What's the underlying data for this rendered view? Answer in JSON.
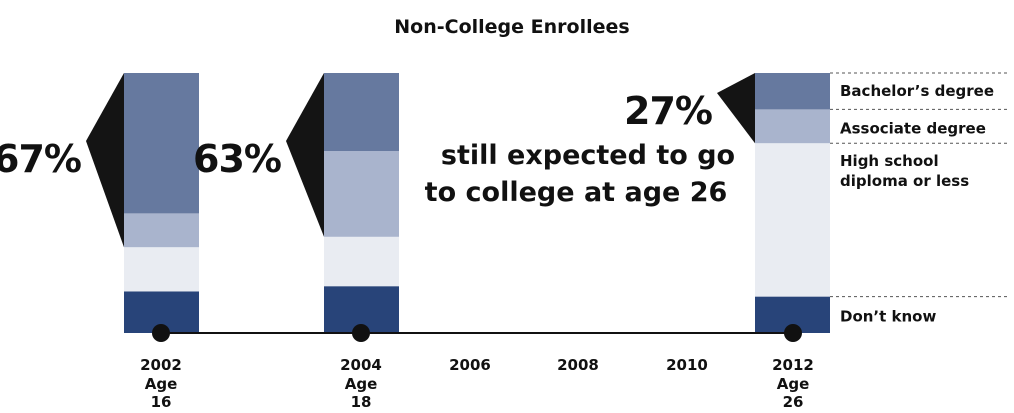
{
  "chart_data": {
    "type": "bar",
    "stacked": true,
    "title": "Non-College Enrollees",
    "x_ticks": [
      {
        "year": "2002",
        "age_label": "Age",
        "age": "16"
      },
      {
        "year": "2004",
        "age_label": "Age",
        "age": "18"
      },
      {
        "year": "2006"
      },
      {
        "year": "2008"
      },
      {
        "year": "2010"
      },
      {
        "year": "2012",
        "age_label": "Age",
        "age": "26"
      }
    ],
    "categories": [
      "2002",
      "2004",
      "2012"
    ],
    "series": [
      {
        "name": "Don't know",
        "color": "#284479",
        "values": [
          16,
          18,
          14
        ]
      },
      {
        "name": "High school diploma or less",
        "color": "#e9ecf2",
        "values": [
          17,
          19,
          59
        ]
      },
      {
        "name": "Associate degree",
        "color": "#a9b4cd",
        "values": [
          13,
          33,
          13
        ]
      },
      {
        "name": "Bachelor's degree",
        "color": "#66799f",
        "values": [
          54,
          30,
          14
        ]
      }
    ],
    "legend_labels": [
      "Bachelor’s degree",
      "Associate degree",
      "High school",
      "diploma or less",
      "Don’t know"
    ],
    "callouts": [
      "67%",
      "63%",
      "27%"
    ],
    "annotation": [
      "still expected to go",
      "to college at age 26"
    ],
    "ylim": [
      0,
      100
    ]
  }
}
